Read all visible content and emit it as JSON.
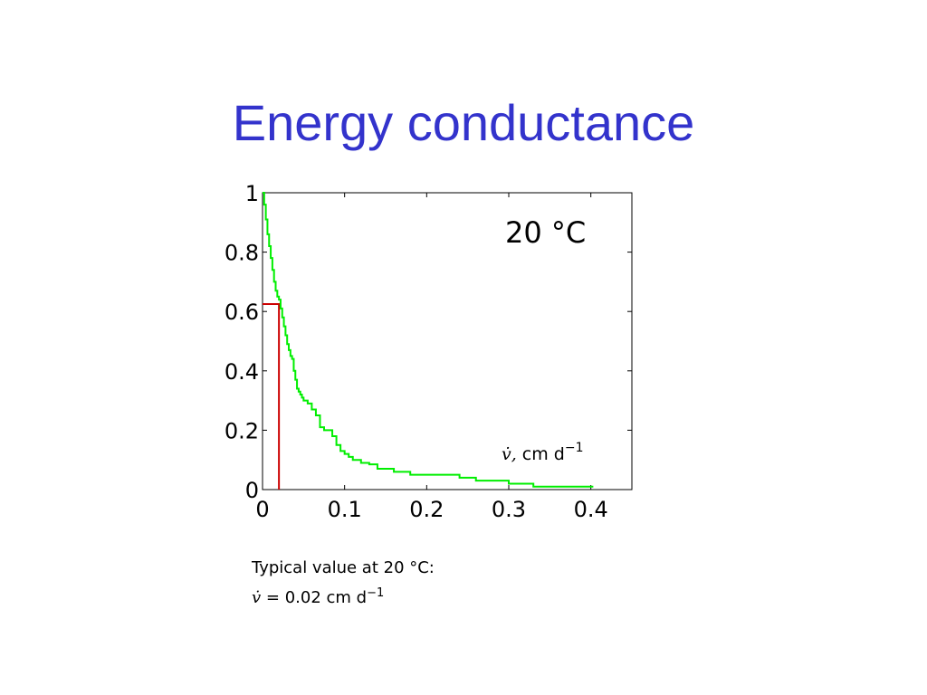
{
  "slide": {
    "title": "Energy conductance"
  },
  "annotations": {
    "temperature": "20 °C",
    "axis_symbol": "v̇,",
    "axis_unit": "cm d",
    "axis_unit_exp": "−1"
  },
  "caption": {
    "line1": "Typical value at 20 °C:",
    "line2_var": "v̇",
    "line2_rest": " = 0.02 cm d",
    "line2_exp": "−1"
  },
  "colors": {
    "title": "#3333cc",
    "curve": "#00ee00",
    "marker": "#cc0000"
  },
  "chart_data": {
    "type": "line",
    "xlim": [
      0,
      0.45
    ],
    "ylim": [
      0,
      1
    ],
    "xticks": [
      "0",
      "0.1",
      "0.2",
      "0.3",
      "0.4"
    ],
    "xtick_values": [
      0,
      0.1,
      0.2,
      0.3,
      0.4
    ],
    "yticks": [
      "0",
      "0.2",
      "0.4",
      "0.6",
      "0.8",
      "1"
    ],
    "ytick_values": [
      0,
      0.2,
      0.4,
      0.6,
      0.8,
      1
    ],
    "grid": false,
    "series": [
      {
        "style": "step",
        "x": [
          0,
          0.002,
          0.004,
          0.006,
          0.008,
          0.01,
          0.012,
          0.014,
          0.016,
          0.018,
          0.02,
          0.022,
          0.024,
          0.026,
          0.028,
          0.03,
          0.032,
          0.034,
          0.036,
          0.038,
          0.04,
          0.042,
          0.044,
          0.046,
          0.048,
          0.05,
          0.055,
          0.06,
          0.065,
          0.07,
          0.075,
          0.08,
          0.085,
          0.09,
          0.095,
          0.1,
          0.105,
          0.11,
          0.12,
          0.13,
          0.14,
          0.16,
          0.18,
          0.2,
          0.24,
          0.26,
          0.3,
          0.33,
          0.403
        ],
        "y": [
          1.0,
          0.96,
          0.91,
          0.86,
          0.82,
          0.78,
          0.74,
          0.7,
          0.67,
          0.65,
          0.64,
          0.61,
          0.58,
          0.55,
          0.52,
          0.49,
          0.47,
          0.45,
          0.44,
          0.4,
          0.37,
          0.34,
          0.33,
          0.32,
          0.31,
          0.3,
          0.29,
          0.27,
          0.25,
          0.21,
          0.2,
          0.2,
          0.18,
          0.15,
          0.13,
          0.12,
          0.11,
          0.1,
          0.09,
          0.085,
          0.07,
          0.06,
          0.05,
          0.05,
          0.04,
          0.03,
          0.02,
          0.01,
          0.01
        ]
      }
    ],
    "marker_lines": {
      "x": 0.02,
      "y": 0.625
    }
  }
}
